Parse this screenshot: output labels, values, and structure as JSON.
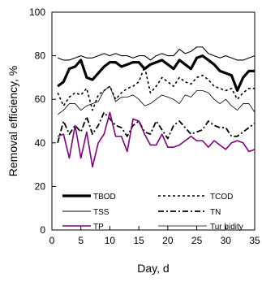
{
  "chart_data": {
    "type": "line",
    "title": "",
    "xlabel": "Day, d",
    "ylabel": "Removal efficiency, %",
    "xlim": [
      0,
      35
    ],
    "ylim": [
      0,
      100
    ],
    "x_ticks": [
      0,
      5,
      10,
      15,
      20,
      25,
      30,
      35
    ],
    "y_ticks": [
      0,
      20,
      40,
      60,
      80,
      100
    ],
    "grid": false,
    "legend_position": "lower-center",
    "x": [
      1,
      2,
      3,
      4,
      5,
      6,
      7,
      8,
      9,
      10,
      11,
      12,
      13,
      14,
      15,
      16,
      17,
      18,
      19,
      20,
      21,
      22,
      23,
      24,
      25,
      26,
      27,
      28,
      29,
      30,
      31,
      32,
      33,
      34,
      35
    ],
    "series": [
      {
        "name": "TBOD",
        "color": "#000000",
        "style": "thick-solid",
        "values": [
          66,
          68,
          74,
          75,
          78,
          70,
          69,
          72,
          75,
          77,
          77,
          75,
          76,
          77,
          77,
          74,
          76,
          77,
          78,
          76,
          74,
          78,
          76,
          74,
          79,
          80,
          78,
          76,
          73,
          72,
          71,
          64,
          70,
          73,
          73
        ]
      },
      {
        "name": "TCOD",
        "color": "#000000",
        "style": "dotted",
        "values": [
          63,
          57,
          61,
          63,
          62,
          65,
          55,
          62,
          64,
          66,
          60,
          63,
          65,
          66,
          68,
          75,
          63,
          66,
          70,
          68,
          66,
          70,
          68,
          67,
          70,
          71,
          69,
          66,
          65,
          64,
          65,
          60,
          63,
          65,
          65
        ]
      },
      {
        "name": "TSS",
        "color": "#000000",
        "style": "thin-solid",
        "values": [
          79,
          78,
          78,
          79,
          80,
          79,
          79,
          80,
          81,
          80,
          81,
          80,
          80,
          79,
          80,
          80,
          78,
          80,
          81,
          80,
          80,
          83,
          81,
          82,
          84,
          84,
          81,
          80,
          79,
          80,
          79,
          78,
          78,
          79,
          80
        ]
      },
      {
        "name": "TN",
        "color": "#000000",
        "style": "dash-dot",
        "values": [
          40,
          50,
          44,
          48,
          45,
          52,
          44,
          48,
          54,
          51,
          48,
          47,
          43,
          48,
          50,
          45,
          44,
          50,
          46,
          42,
          48,
          50,
          47,
          44,
          45,
          46,
          50,
          48,
          47,
          47,
          43,
          43,
          45,
          47,
          49
        ]
      },
      {
        "name": "TP",
        "color": "#800080",
        "style": "purple",
        "values": [
          43,
          44,
          33,
          48,
          33,
          45,
          29,
          40,
          44,
          54,
          43,
          43,
          36,
          51,
          50,
          44,
          39,
          39,
          44,
          38,
          38,
          39,
          41,
          43,
          41,
          41,
          38,
          41,
          39,
          37,
          40,
          41,
          40,
          36,
          37
        ]
      },
      {
        "name": "Turbidity",
        "color": "#000000",
        "style": "thin-solid-2",
        "values": [
          53,
          55,
          58,
          58,
          55,
          57,
          58,
          59,
          64,
          66,
          59,
          61,
          61,
          62,
          60,
          57,
          58,
          60,
          62,
          61,
          60,
          58,
          62,
          61,
          64,
          64,
          63,
          60,
          58,
          60,
          57,
          55,
          58,
          58,
          54
        ]
      }
    ]
  },
  "legend": {
    "tbod": "TBOD",
    "tcod": "TCOD",
    "tss": "TSS",
    "tn": "TN",
    "tp": "TP",
    "turbidity": "Tur bidity"
  }
}
